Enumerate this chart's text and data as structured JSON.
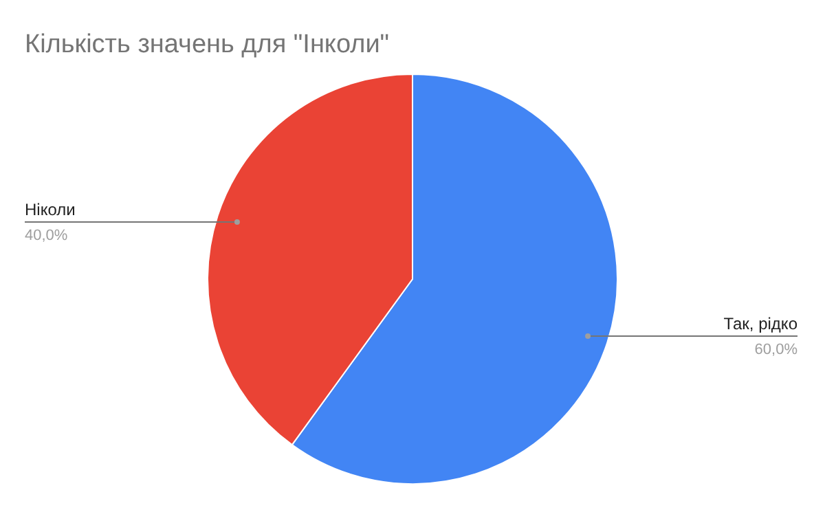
{
  "chart_data": {
    "type": "pie",
    "title": "Кількість значень для \"Інколи\"",
    "categories": [
      "Так, рідко",
      "Ніколи"
    ],
    "values": [
      60,
      40
    ],
    "colors": [
      "#4285f4",
      "#ea4335"
    ],
    "value_labels": [
      "60,0%",
      "40,0%"
    ]
  }
}
